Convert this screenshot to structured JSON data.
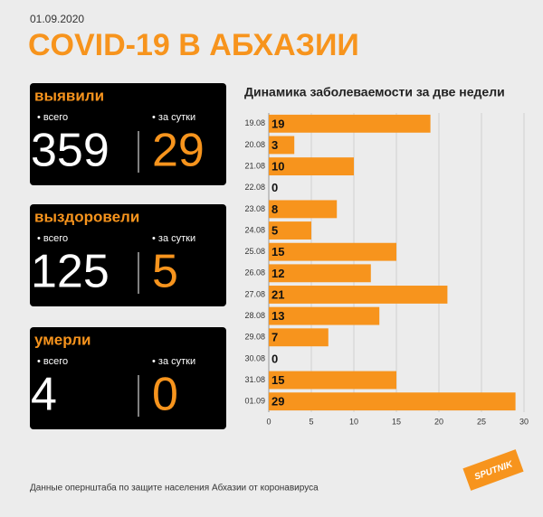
{
  "header": {
    "date": "01.09.2020",
    "title": "COVID-19 В АБХАЗИИ"
  },
  "panels": [
    {
      "label": "выявили",
      "total_label": "• всего",
      "daily_label": "• за сутки",
      "total": 359,
      "daily": 29
    },
    {
      "label": "выздоровели",
      "total_label": "• всего",
      "daily_label": "• за сутки",
      "total": 125,
      "daily": 5
    },
    {
      "label": "умерли",
      "total_label": "• всего",
      "daily_label": "• за сутки",
      "total": 4,
      "daily": 0
    }
  ],
  "chart_data": {
    "type": "bar",
    "orientation": "horizontal",
    "title": "Динамика заболеваемости за две недели",
    "categories": [
      "19.08",
      "20.08",
      "21.08",
      "22.08",
      "23.08",
      "24.08",
      "25.08",
      "26.08",
      "27.08",
      "28.08",
      "29.08",
      "30.08",
      "31.08",
      "01.09"
    ],
    "values": [
      19,
      3,
      10,
      0,
      8,
      5,
      15,
      12,
      21,
      13,
      7,
      0,
      15,
      29
    ],
    "color": "#f7941d",
    "xlim": [
      0,
      30
    ],
    "xticks": [
      0,
      5,
      10,
      15,
      20,
      25,
      30
    ],
    "grid": true
  },
  "footer": {
    "source": "Данные опернштаба по защите населения Абхазии от коронавируса",
    "logo": "SPUTNIK"
  }
}
